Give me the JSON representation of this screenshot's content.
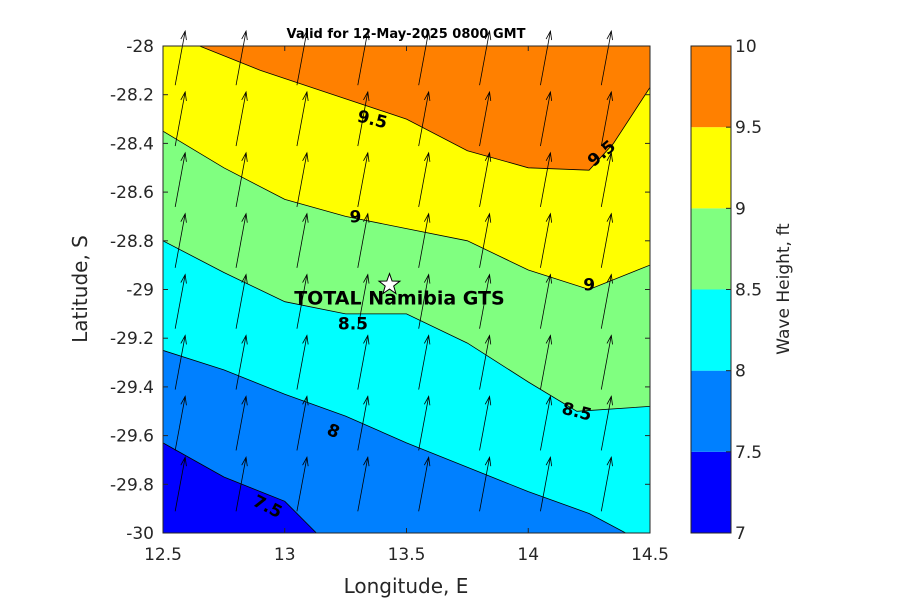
{
  "chart_data": {
    "type": "contour",
    "title": "Valid for 12-May-2025 0800 GMT",
    "xlabel": "Longitude, E",
    "ylabel": "Latitude, S",
    "xlim": [
      12.5,
      14.5
    ],
    "ylim": [
      -30,
      -28
    ],
    "xticks": [
      "12.5",
      "13",
      "13.5",
      "14",
      "14.5"
    ],
    "yticks": [
      "-28",
      "-28.2",
      "-28.4",
      "-28.6",
      "-28.8",
      "-29",
      "-29.2",
      "-29.4",
      "-29.6",
      "-29.8",
      "-30"
    ],
    "colorbar": {
      "label": "Wave Height, ft",
      "range": [
        7,
        10
      ],
      "ticks": [
        "7",
        "7.5",
        "8",
        "8.5",
        "9",
        "9.5",
        "10"
      ],
      "levels": [
        {
          "from": 7.0,
          "to": 7.5,
          "color": "#0000ff"
        },
        {
          "from": 7.5,
          "to": 8.0,
          "color": "#0080ff"
        },
        {
          "from": 8.0,
          "to": 8.5,
          "color": "#00ffff"
        },
        {
          "from": 8.5,
          "to": 9.0,
          "color": "#80ff80"
        },
        {
          "from": 9.0,
          "to": 9.5,
          "color": "#ffff00"
        },
        {
          "from": 9.5,
          "to": 10.0,
          "color": "#ff8000"
        }
      ]
    },
    "contours": [
      {
        "level": 7.5,
        "points": [
          [
            12.5,
            -29.63
          ],
          [
            12.75,
            -29.77
          ],
          [
            13.0,
            -29.87
          ],
          [
            13.13,
            -30.0
          ]
        ],
        "label": "7.5",
        "label_at": [
          12.93,
          -29.89
        ],
        "label_angle": 27
      },
      {
        "level": 8.0,
        "points": [
          [
            12.5,
            -29.25
          ],
          [
            12.75,
            -29.33
          ],
          [
            13.0,
            -29.43
          ],
          [
            13.25,
            -29.52
          ],
          [
            13.5,
            -29.63
          ],
          [
            13.75,
            -29.73
          ],
          [
            14.0,
            -29.83
          ],
          [
            14.25,
            -29.92
          ],
          [
            14.4,
            -30.0
          ]
        ],
        "label": "8",
        "label_at": [
          13.2,
          -29.58
        ],
        "label_angle": 22
      },
      {
        "level": 8.5,
        "points": [
          [
            12.5,
            -28.8
          ],
          [
            12.75,
            -28.93
          ],
          [
            13.0,
            -29.05
          ],
          [
            13.25,
            -29.1
          ],
          [
            13.5,
            -29.1
          ],
          [
            13.75,
            -29.22
          ],
          [
            14.0,
            -29.38
          ],
          [
            14.2,
            -29.5
          ],
          [
            14.5,
            -29.48
          ]
        ],
        "label": "8.5",
        "label_at": [
          13.28,
          -29.14
        ],
        "label_angle": 0,
        "label2": "8.5",
        "label2_at": [
          14.2,
          -29.5
        ],
        "label2_angle": 14
      },
      {
        "level": 9.0,
        "points": [
          [
            12.5,
            -28.35
          ],
          [
            12.75,
            -28.5
          ],
          [
            13.0,
            -28.63
          ],
          [
            13.25,
            -28.7
          ],
          [
            13.5,
            -28.75
          ],
          [
            13.75,
            -28.8
          ],
          [
            14.0,
            -28.92
          ],
          [
            14.25,
            -29.0
          ],
          [
            14.5,
            -28.9
          ]
        ],
        "label": "9",
        "label_at": [
          13.29,
          -28.7
        ],
        "label_angle": 0,
        "label2": "9",
        "label2_at": [
          14.25,
          -28.98
        ],
        "label2_angle": 0
      },
      {
        "level": 9.5,
        "points": [
          [
            12.65,
            -28.0
          ],
          [
            12.9,
            -28.1
          ],
          [
            13.2,
            -28.2
          ],
          [
            13.5,
            -28.3
          ],
          [
            13.75,
            -28.43
          ],
          [
            14.0,
            -28.5
          ],
          [
            14.25,
            -28.51
          ],
          [
            14.35,
            -28.4
          ],
          [
            14.5,
            -28.17
          ]
        ],
        "label": "9.5",
        "label_at": [
          13.36,
          -28.3
        ],
        "label_angle": 14,
        "label2": "9.5",
        "label2_at": [
          14.3,
          -28.44
        ],
        "label2_angle": -40
      }
    ],
    "vectors": {
      "x": [
        12.55,
        12.8,
        13.05,
        13.3,
        13.55,
        13.8,
        14.05,
        14.3
      ],
      "y": [
        -28.05,
        -28.3,
        -28.55,
        -28.8,
        -29.05,
        -29.3,
        -29.55,
        -29.8
      ],
      "direction_note": "arrows point roughly north-northeast"
    },
    "site": {
      "name": "TOTAL Namibia GTS",
      "lon": 13.43,
      "lat": -28.98
    }
  }
}
